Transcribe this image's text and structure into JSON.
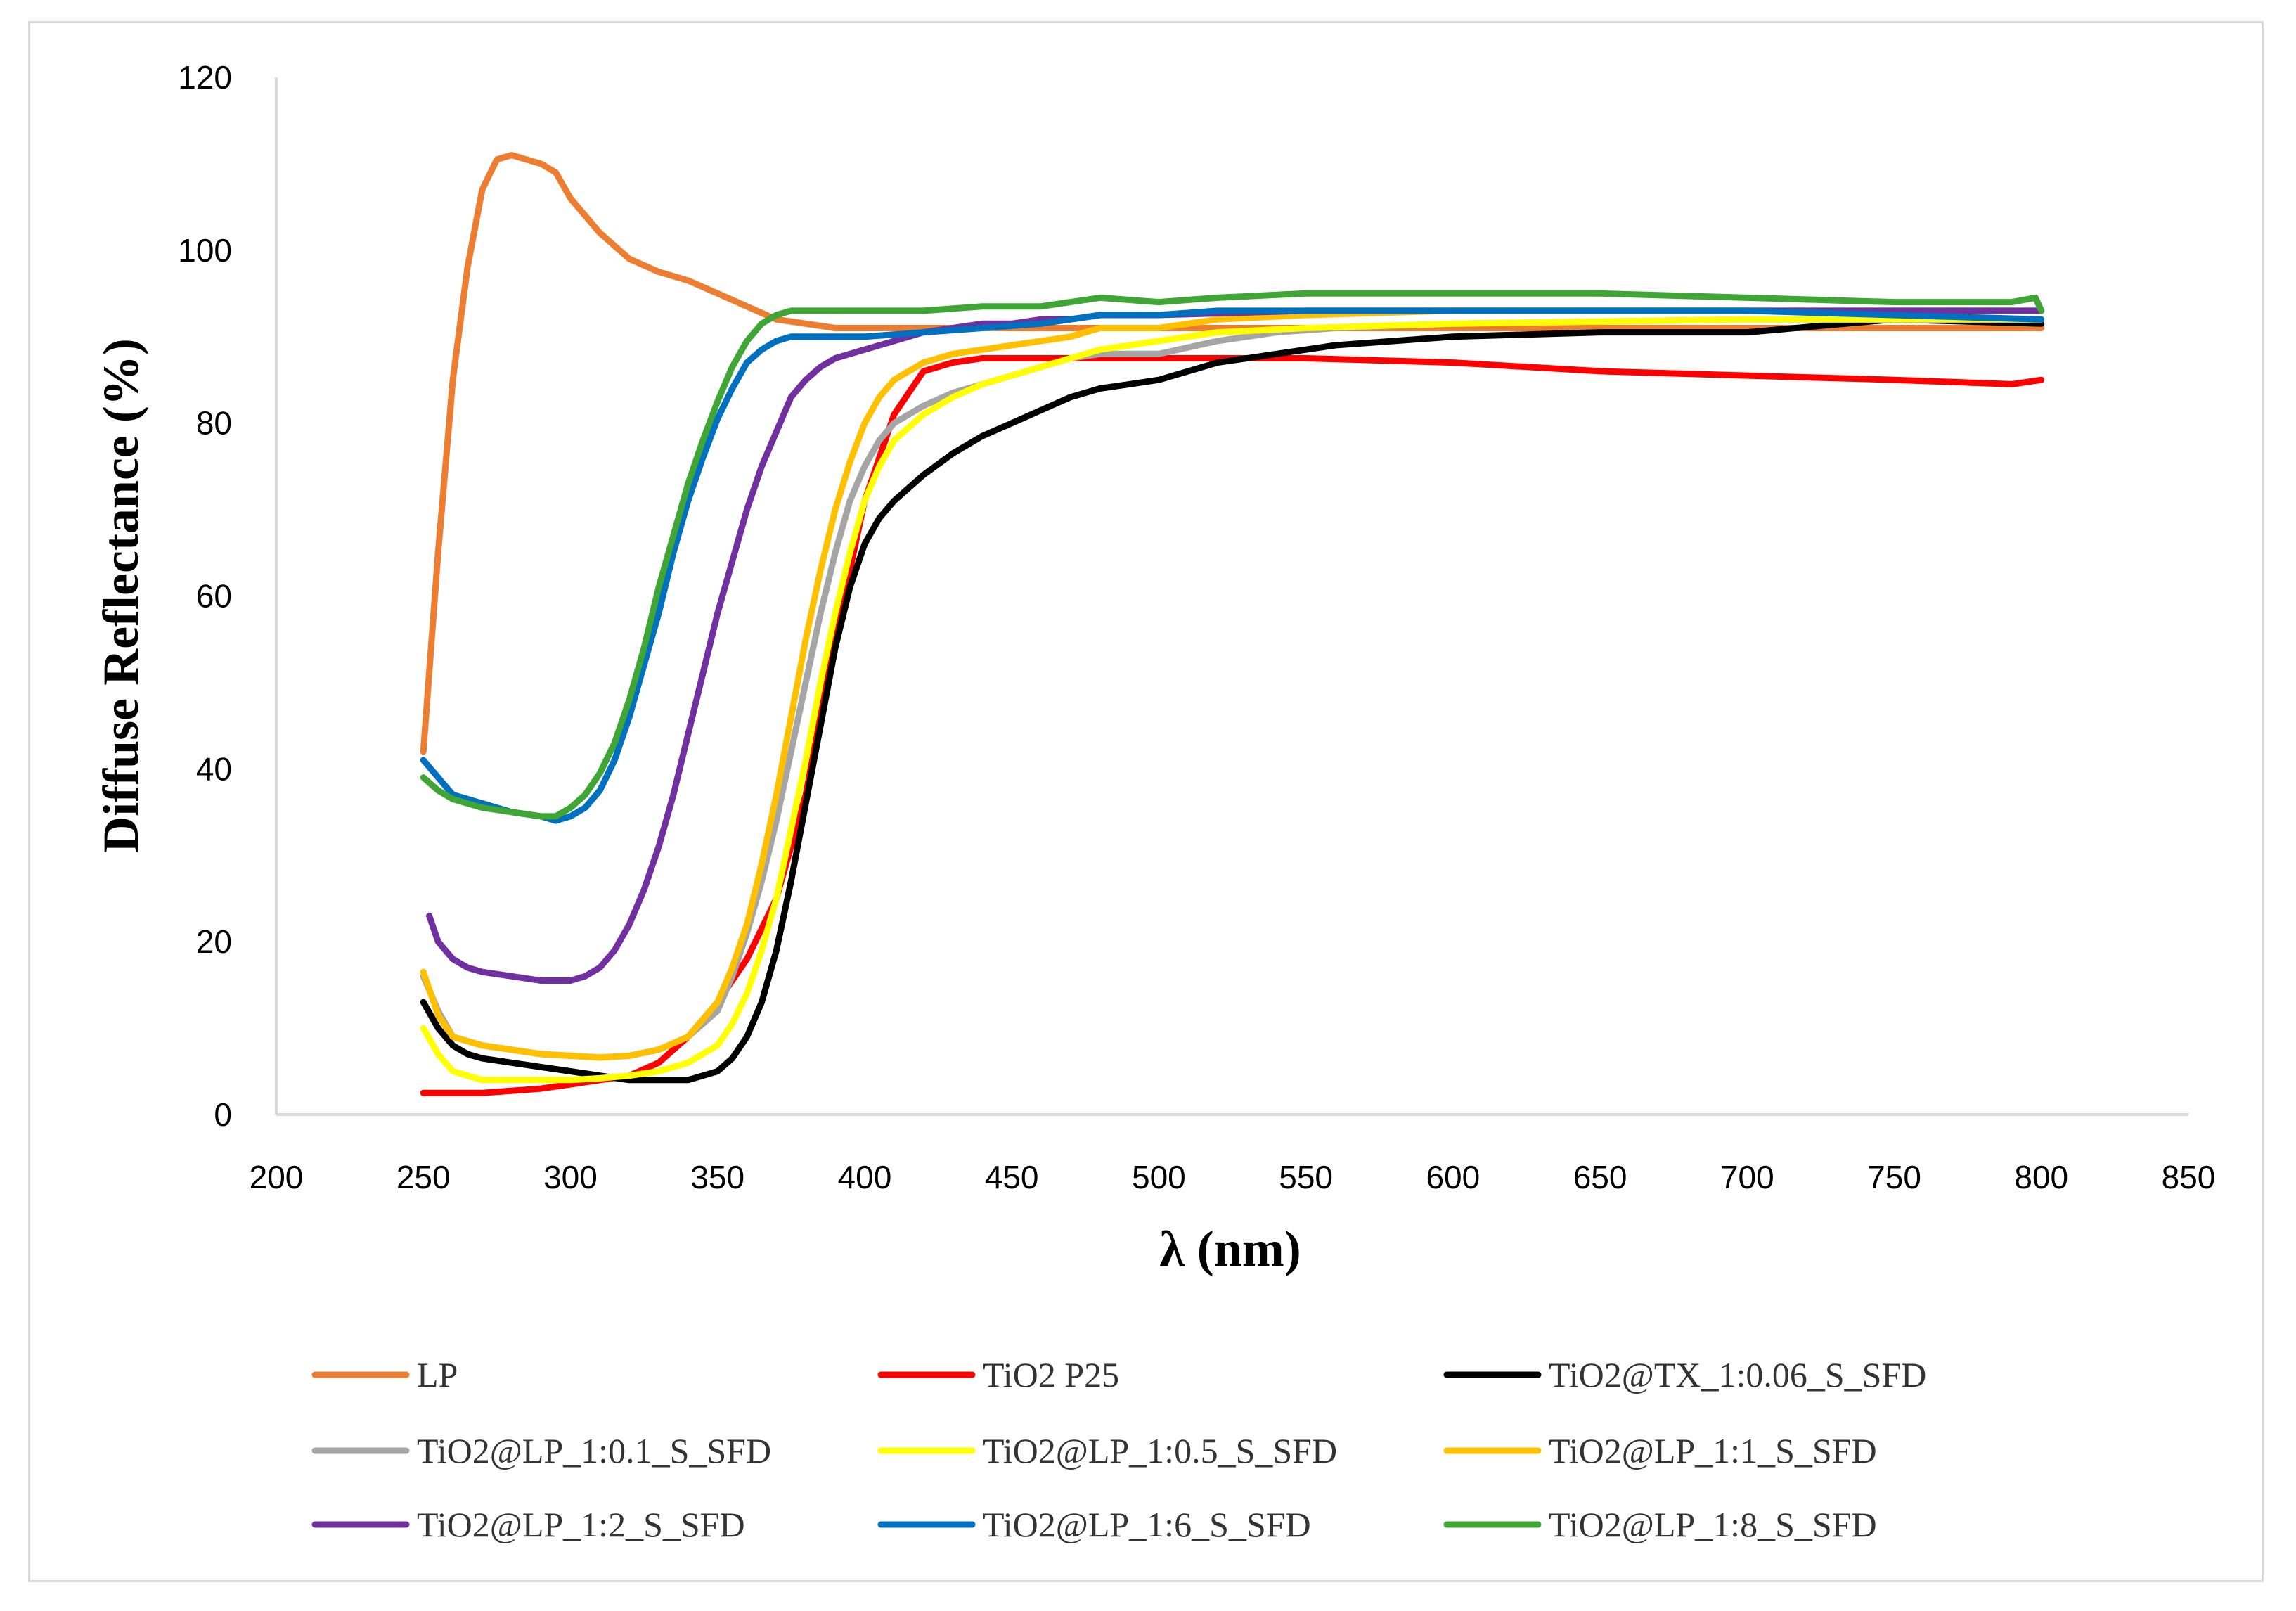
{
  "chart_data": {
    "type": "line",
    "title": "",
    "xlabel": "λ (nm)",
    "ylabel": "Diffuse Reflectance (%)",
    "xlim": [
      200,
      850
    ],
    "ylim": [
      0,
      120
    ],
    "xticks": [
      200,
      250,
      300,
      350,
      400,
      450,
      500,
      550,
      600,
      650,
      700,
      750,
      800,
      850
    ],
    "yticks": [
      0,
      20,
      40,
      60,
      80,
      100,
      120
    ],
    "grid": false,
    "legend_position": "bottom",
    "series": [
      {
        "name": "LP",
        "color": "#ED7D31",
        "x": [
          250,
          255,
          260,
          265,
          270,
          275,
          280,
          285,
          290,
          295,
          300,
          310,
          320,
          330,
          340,
          350,
          360,
          370,
          380,
          390,
          400,
          450,
          500,
          600,
          700,
          800
        ],
        "y": [
          42,
          65,
          85,
          98,
          107,
          110.5,
          111,
          110.5,
          110,
          109,
          106,
          102,
          99,
          97.5,
          96.5,
          95,
          93.5,
          92,
          91.5,
          91,
          91,
          91,
          91,
          91,
          91,
          91
        ]
      },
      {
        "name": "TiO2 P25",
        "color": "#FF0000",
        "x": [
          250,
          270,
          290,
          300,
          320,
          330,
          340,
          350,
          360,
          370,
          380,
          390,
          400,
          410,
          420,
          430,
          440,
          450,
          460,
          470,
          480,
          500,
          550,
          600,
          650,
          700,
          750,
          790,
          800
        ],
        "y": [
          2.5,
          2.5,
          3,
          3.5,
          4.5,
          6,
          9,
          13,
          18,
          25,
          37,
          55,
          71,
          81,
          86,
          87,
          87.5,
          87.5,
          87.5,
          87.5,
          87.5,
          87.5,
          87.5,
          87,
          86,
          85.5,
          85,
          84.5,
          85
        ]
      },
      {
        "name": "TiO2@TX_1:0.06_S_SFD",
        "color": "#000000",
        "x": [
          250,
          255,
          260,
          265,
          270,
          280,
          290,
          300,
          310,
          320,
          330,
          340,
          345,
          350,
          355,
          360,
          365,
          370,
          375,
          380,
          385,
          390,
          395,
          400,
          405,
          410,
          420,
          430,
          440,
          450,
          460,
          470,
          480,
          490,
          500,
          510,
          520,
          530,
          540,
          550,
          560,
          580,
          600,
          650,
          700,
          750,
          800
        ],
        "y": [
          13,
          10,
          8,
          7,
          6.5,
          6,
          5.5,
          5,
          4.5,
          4,
          4,
          4,
          4.5,
          5,
          6.5,
          9,
          13,
          19,
          27,
          36,
          45,
          54,
          61,
          66,
          69,
          71,
          74,
          76.5,
          78.5,
          80,
          81.5,
          83,
          84,
          84.5,
          85,
          86,
          87,
          87.5,
          88,
          88.5,
          89,
          89.5,
          90,
          90.5,
          90.5,
          92,
          91.5
        ]
      },
      {
        "name": "TiO2@LP_1:0.1_S_SFD",
        "color": "#A5A5A5",
        "x": [
          250,
          255,
          260,
          270,
          280,
          290,
          300,
          310,
          320,
          330,
          340,
          350,
          355,
          360,
          365,
          370,
          375,
          380,
          385,
          390,
          395,
          400,
          405,
          410,
          420,
          430,
          440,
          450,
          460,
          470,
          480,
          490,
          500,
          520,
          540,
          560,
          600,
          700,
          800
        ],
        "y": [
          16,
          12,
          9,
          8,
          7.5,
          7,
          6.8,
          6.6,
          6.8,
          7.5,
          9,
          12,
          16,
          21,
          27,
          34,
          42,
          50,
          58,
          65,
          71,
          75,
          78,
          80,
          82,
          83.5,
          84.5,
          85.5,
          86.5,
          87.5,
          88,
          88,
          88,
          89.5,
          90.5,
          91,
          91.5,
          92,
          92
        ]
      },
      {
        "name": "TiO2@LP_1:0.5_S_SFD",
        "color": "#FFFF00",
        "x": [
          250,
          255,
          260,
          265,
          270,
          280,
          290,
          300,
          310,
          320,
          330,
          340,
          350,
          355,
          360,
          365,
          370,
          375,
          380,
          385,
          390,
          395,
          400,
          405,
          410,
          420,
          430,
          440,
          450,
          460,
          470,
          480,
          500,
          520,
          550,
          600,
          700,
          800
        ],
        "y": [
          10,
          7,
          5,
          4.5,
          4,
          4,
          4,
          4,
          4.2,
          4.5,
          5,
          6,
          8,
          10.5,
          14,
          19,
          25,
          33,
          41,
          50,
          58,
          65,
          71,
          75,
          78,
          81,
          83,
          84.5,
          85.5,
          86.5,
          87.5,
          88.5,
          89.5,
          90.5,
          91,
          91.5,
          92,
          92
        ]
      },
      {
        "name": "TiO2@LP_1:1_S_SFD",
        "color": "#FFC000",
        "x": [
          250,
          255,
          260,
          270,
          280,
          290,
          300,
          310,
          320,
          330,
          340,
          350,
          355,
          360,
          365,
          370,
          375,
          380,
          385,
          390,
          395,
          400,
          405,
          410,
          420,
          430,
          440,
          450,
          460,
          470,
          480,
          500,
          520,
          550,
          600,
          700,
          800
        ],
        "y": [
          16.5,
          11.5,
          9,
          8,
          7.5,
          7,
          6.8,
          6.6,
          6.8,
          7.5,
          9,
          13,
          17,
          22,
          29,
          37,
          46,
          55,
          63,
          70,
          75.5,
          80,
          83,
          85,
          87,
          88,
          88.5,
          89,
          89.5,
          90,
          91,
          91,
          92,
          92.5,
          93,
          93,
          93
        ]
      },
      {
        "name": "TiO2@LP_1:2_S_SFD",
        "color": "#7030A0",
        "x": [
          252,
          255,
          260,
          265,
          270,
          280,
          290,
          300,
          305,
          310,
          315,
          320,
          325,
          330,
          335,
          340,
          345,
          350,
          355,
          360,
          365,
          370,
          375,
          380,
          385,
          390,
          395,
          400,
          410,
          420,
          430,
          440,
          450,
          460,
          470,
          480,
          500,
          550,
          600,
          700,
          800
        ],
        "y": [
          23,
          20,
          18,
          17,
          16.5,
          16,
          15.5,
          15.5,
          16,
          17,
          19,
          22,
          26,
          31,
          37,
          44,
          51,
          58,
          64,
          70,
          75,
          79,
          83,
          85,
          86.5,
          87.5,
          88,
          88.5,
          89.5,
          90.5,
          91,
          91.5,
          91.5,
          92,
          92,
          92.5,
          92.5,
          93,
          93,
          93,
          93
        ]
      },
      {
        "name": "TiO2@LP_1:6_S_SFD",
        "color": "#0070C0",
        "x": [
          250,
          255,
          260,
          270,
          280,
          290,
          295,
          300,
          305,
          310,
          315,
          320,
          325,
          330,
          335,
          340,
          345,
          350,
          355,
          360,
          365,
          370,
          375,
          380,
          390,
          400,
          420,
          440,
          460,
          480,
          500,
          520,
          550,
          600,
          700,
          800
        ],
        "y": [
          41,
          39,
          37,
          36,
          35,
          34.5,
          34,
          34.5,
          35.5,
          37.5,
          41,
          46,
          52,
          58,
          65,
          71,
          76,
          80.5,
          84,
          87,
          88.5,
          89.5,
          90,
          90,
          90,
          90,
          90.5,
          91,
          91.5,
          92.5,
          92.5,
          93,
          93,
          93,
          93,
          92
        ]
      },
      {
        "name": "TiO2@LP_1:8_S_SFD",
        "color": "#3FA535",
        "x": [
          250,
          255,
          260,
          270,
          280,
          290,
          295,
          300,
          305,
          310,
          315,
          320,
          325,
          330,
          335,
          340,
          345,
          350,
          355,
          360,
          365,
          370,
          375,
          380,
          390,
          400,
          420,
          440,
          460,
          480,
          500,
          520,
          550,
          600,
          650,
          700,
          750,
          790,
          798,
          800
        ],
        "y": [
          39,
          37.5,
          36.5,
          35.5,
          35,
          34.5,
          34.5,
          35.5,
          37,
          39.5,
          43,
          48,
          54,
          61,
          67,
          73,
          78,
          82.5,
          86.5,
          89.5,
          91.5,
          92.5,
          93,
          93,
          93,
          93,
          93,
          93.5,
          93.5,
          94.5,
          94,
          94.5,
          95,
          95,
          95,
          94.5,
          94,
          94,
          94.5,
          93
        ]
      }
    ]
  }
}
